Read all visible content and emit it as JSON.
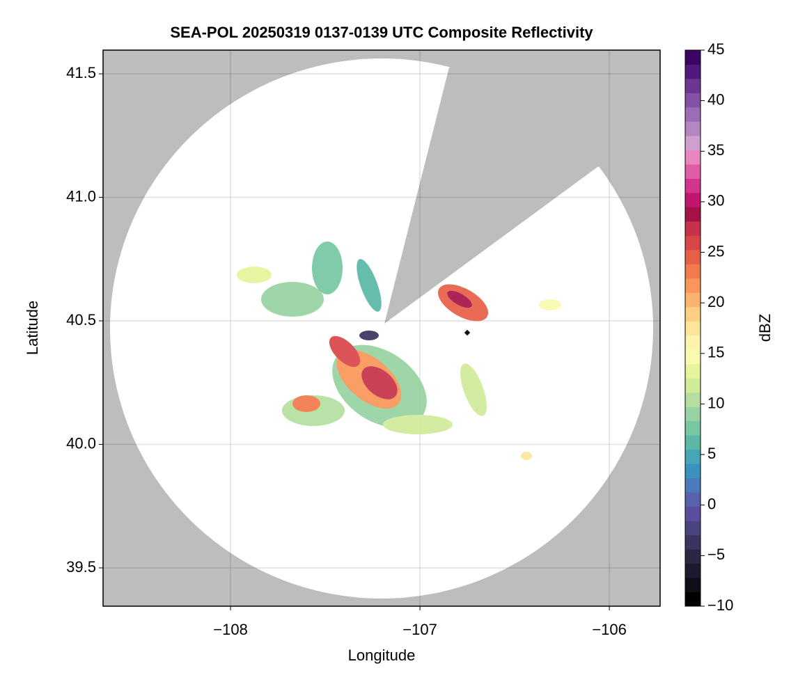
{
  "chart_data": {
    "type": "heatmap",
    "title": "SEA-POL 20250319 0137-0139 UTC Composite Reflectivity",
    "x_label": "Longitude",
    "y_label": "Latitude",
    "xlim": [
      -108.673,
      -105.732
    ],
    "ylim": [
      39.345,
      41.596
    ],
    "xticks": [
      {
        "value": -108,
        "label": "−108"
      },
      {
        "value": -107,
        "label": "−107"
      },
      {
        "value": -106,
        "label": "−106"
      }
    ],
    "yticks": [
      39.5,
      {
        "value": 40,
        "label": "40.0"
      },
      40.5,
      {
        "value": 41,
        "label": "41.0"
      },
      41.5
    ],
    "grid": true,
    "colorbar": {
      "label": "dBZ",
      "clim": [
        -10,
        45
      ],
      "ticks": [
        {
          "value": -10,
          "label": "−10"
        },
        {
          "value": -5,
          "label": "−5"
        },
        0,
        5,
        10,
        15,
        20,
        25,
        30,
        35,
        40,
        45
      ],
      "colors": [
        "#000000",
        "#0f0f1a",
        "#1c1a2e",
        "#2a2744",
        "#3a3560",
        "#4a447e",
        "#5a4f9c",
        "#5a61ad",
        "#4b7bbd",
        "#3b93bd",
        "#44a6b6",
        "#5bb8a6",
        "#77c7a3",
        "#97d3a2",
        "#b5df9f",
        "#d1eb9b",
        "#e8f49c",
        "#f7fab0",
        "#fef4b0",
        "#fde59a",
        "#fdcf83",
        "#fcb46c",
        "#f99658",
        "#f37a4b",
        "#e85f47",
        "#d8464a",
        "#c53249",
        "#a5124a",
        "#c0166e",
        "#d3348e",
        "#e05da6",
        "#e887bd",
        "#cfa0cf",
        "#b487c4",
        "#9b6db6",
        "#8452a5",
        "#6c3693",
        "#52197d",
        "#3d0563"
      ]
    }
  }
}
